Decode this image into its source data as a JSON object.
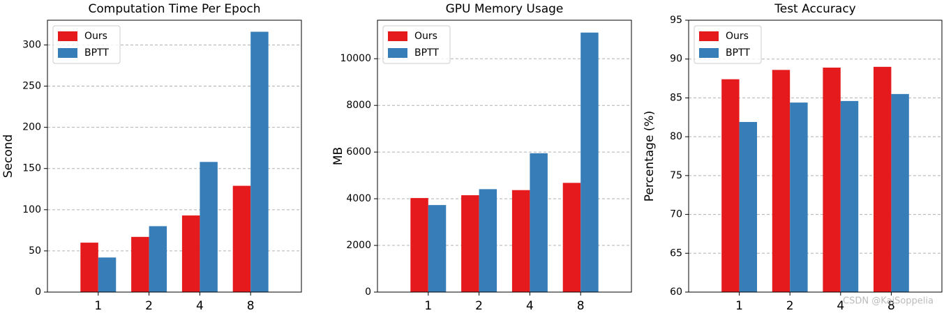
{
  "chart_data": [
    {
      "type": "bar",
      "title": "Computation Time Per Epoch",
      "y_label": "Second",
      "categories": [
        "1",
        "2",
        "4",
        "8"
      ],
      "series": [
        {
          "name": "Ours",
          "color": "#e41a1c",
          "values": [
            60,
            67,
            93,
            129
          ]
        },
        {
          "name": "BPTT",
          "color": "#377eb8",
          "values": [
            42,
            80,
            158,
            316
          ]
        }
      ],
      "ylim": [
        0,
        330
      ],
      "yticks": [
        0,
        50,
        100,
        150,
        200,
        250,
        300
      ],
      "grid": true,
      "legend": "upper left"
    },
    {
      "type": "bar",
      "title": "GPU Memory Usage",
      "y_label": "MB",
      "categories": [
        "1",
        "2",
        "4",
        "8"
      ],
      "series": [
        {
          "name": "Ours",
          "color": "#e41a1c",
          "values": [
            4030,
            4150,
            4370,
            4680
          ]
        },
        {
          "name": "BPTT",
          "color": "#377eb8",
          "values": [
            3730,
            4410,
            5950,
            11120
          ]
        }
      ],
      "ylim": [
        0,
        11650
      ],
      "yticks": [
        0,
        2000,
        4000,
        6000,
        8000,
        10000
      ],
      "grid": true,
      "legend": "upper left"
    },
    {
      "type": "bar",
      "title": "Test Accuracy",
      "y_label": "Percentage (%)",
      "categories": [
        "1",
        "2",
        "4",
        "8"
      ],
      "series": [
        {
          "name": "Ours",
          "color": "#e41a1c",
          "values": [
            87.4,
            88.6,
            88.9,
            89.0
          ]
        },
        {
          "name": "BPTT",
          "color": "#377eb8",
          "values": [
            81.9,
            84.4,
            84.6,
            85.5
          ]
        }
      ],
      "ylim": [
        60,
        95
      ],
      "yticks": [
        60,
        65,
        70,
        75,
        80,
        85,
        90,
        95
      ],
      "grid": true,
      "legend": "upper left",
      "watermark": "CSDN @KaiSoppelia"
    }
  ]
}
